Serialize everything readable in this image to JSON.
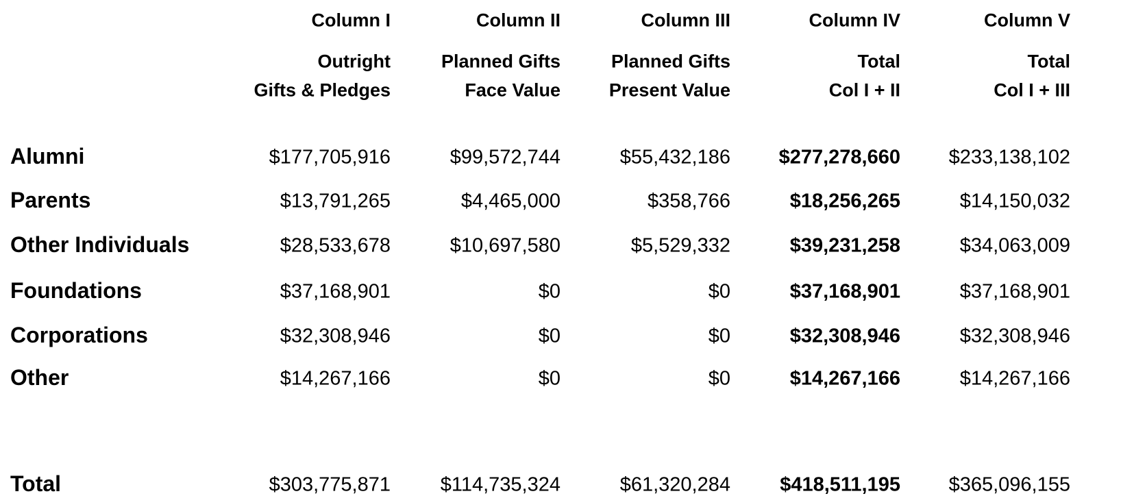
{
  "table": {
    "columns": [
      {
        "name": "Column I",
        "subtitle": [
          "Outright",
          "Gifts & Pledges"
        ]
      },
      {
        "name": "Column II",
        "subtitle": [
          "Planned Gifts",
          "Face Value"
        ]
      },
      {
        "name": "Column III",
        "subtitle": [
          "Planned Gifts",
          "Present Value"
        ]
      },
      {
        "name": "Column IV",
        "subtitle": [
          "Total",
          "Col I + II"
        ]
      },
      {
        "name": "Column V",
        "subtitle": [
          "Total",
          "Col I + III"
        ]
      }
    ],
    "rows": [
      {
        "label": "Alumni",
        "values": [
          "$177,705,916",
          "$99,572,744",
          "$55,432,186",
          "$277,278,660",
          "$233,138,102"
        ]
      },
      {
        "label": "Parents",
        "values": [
          "$13,791,265",
          "$4,465,000",
          "$358,766",
          "$18,256,265",
          "$14,150,032"
        ]
      },
      {
        "label": "Other Individuals",
        "values": [
          "$28,533,678",
          "$10,697,580",
          "$5,529,332",
          "$39,231,258",
          "$34,063,009"
        ]
      },
      {
        "label": "Foundations",
        "values": [
          "$37,168,901",
          "$0",
          "$0",
          "$37,168,901",
          "$37,168,901"
        ]
      },
      {
        "label": "Corporations",
        "values": [
          "$32,308,946",
          "$0",
          "$0",
          "$32,308,946",
          "$32,308,946"
        ]
      },
      {
        "label": "Other",
        "values": [
          "$14,267,166",
          "$0",
          "$0",
          "$14,267,166",
          "$14,267,166"
        ]
      }
    ],
    "total": {
      "label": "Total",
      "values": [
        "$303,775,871",
        "$114,735,324",
        "$61,320,284",
        "$418,511,195",
        "$365,096,155"
      ]
    }
  }
}
